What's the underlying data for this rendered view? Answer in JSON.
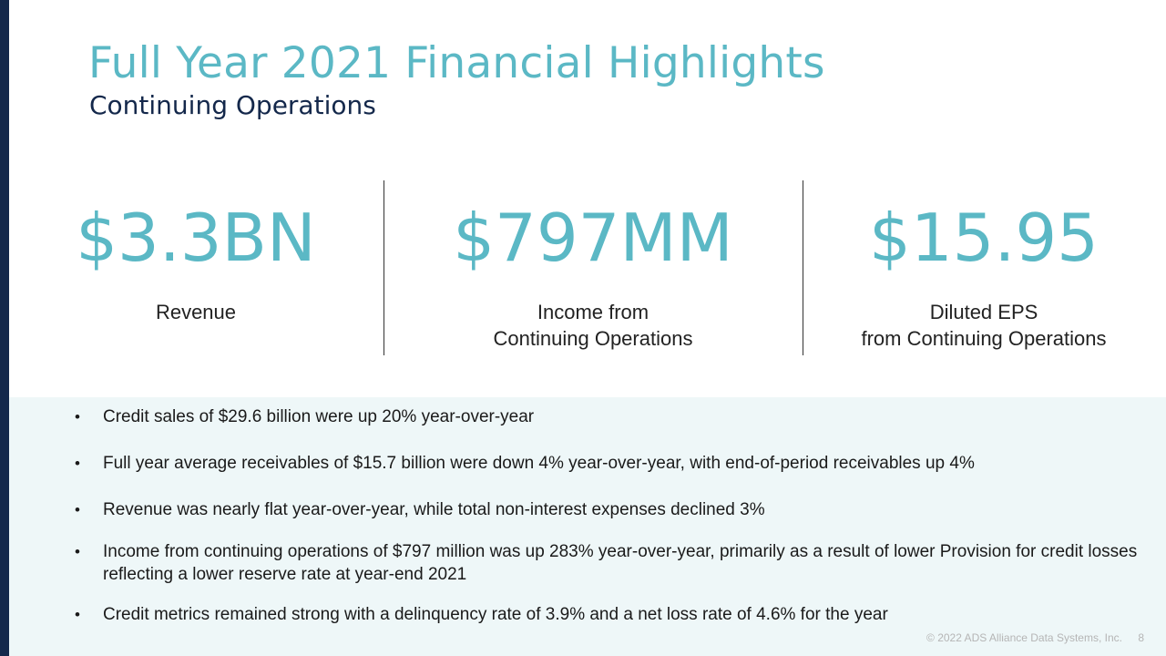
{
  "slide": {
    "title": "Full Year 2021 Financial Highlights",
    "subtitle": "Continuing Operations"
  },
  "metrics": [
    {
      "value": "$3.3BN",
      "label": "Revenue"
    },
    {
      "value": "$797MM",
      "label": "Income from\nContinuing Operations"
    },
    {
      "value": "$15.95",
      "label": "Diluted EPS\nfrom Continuing Operations"
    }
  ],
  "bullets": [
    "Credit sales of $29.6 billion were up 20% year-over-year",
    "Full year average receivables of $15.7 billion were down 4% year-over-year, with end-of-period receivables up 4%",
    "Revenue was nearly flat year-over-year, while total non-interest expenses declined 3%",
    "Income from continuing operations of $797 million was up 283% year-over-year, primarily as a result of lower Provision for credit losses reflecting a lower reserve rate at year-end 2021",
    "Credit metrics remained strong with a delinquency rate of 3.9% and a net loss rate of 4.6% for the year"
  ],
  "bullet_symbol": "•",
  "footer": {
    "copyright": "© 2022 ADS Alliance Data Systems, Inc.",
    "page_number": "8"
  },
  "colors": {
    "accent": "#5bb8c5",
    "navy": "#14284b",
    "panel": "#eef7f8"
  }
}
